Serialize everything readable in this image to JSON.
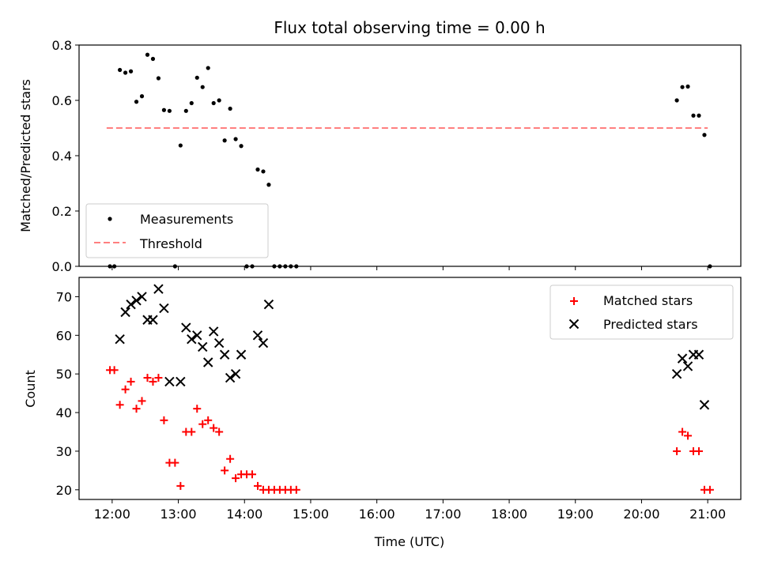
{
  "title": "Flux total observing time = 0.00 h",
  "colors": {
    "measure": "#000000",
    "threshold": "#ff7f7f",
    "matched": "#ff0000",
    "predicted": "#000000"
  },
  "chart_data": [
    {
      "type": "scatter",
      "ylabel": "Matched/Predicted stars",
      "ylim": [
        0,
        0.8
      ],
      "yticks": [
        "0.0",
        "0.2",
        "0.4",
        "0.6",
        "0.8"
      ],
      "legend": {
        "placement": "lower-left",
        "entries": [
          "Measurements",
          "Threshold"
        ]
      },
      "series": [
        {
          "name": "Measurements",
          "marker": "dot",
          "points": [
            [
              "11:58",
              0.0
            ],
            [
              "12:02",
              0.0
            ],
            [
              "12:07",
              0.71
            ],
            [
              "12:12",
              0.7
            ],
            [
              "12:17",
              0.705
            ],
            [
              "12:22",
              0.595
            ],
            [
              "12:27",
              0.615
            ],
            [
              "12:32",
              0.765
            ],
            [
              "12:37",
              0.75
            ],
            [
              "12:42",
              0.68
            ],
            [
              "12:47",
              0.565
            ],
            [
              "12:52",
              0.562
            ],
            [
              "12:57",
              0.0
            ],
            [
              "13:02",
              0.437
            ],
            [
              "13:07",
              0.562
            ],
            [
              "13:12",
              0.59
            ],
            [
              "13:17",
              0.682
            ],
            [
              "13:22",
              0.648
            ],
            [
              "13:27",
              0.717
            ],
            [
              "13:32",
              0.59
            ],
            [
              "13:37",
              0.6
            ],
            [
              "13:42",
              0.455
            ],
            [
              "13:47",
              0.57
            ],
            [
              "13:52",
              0.46
            ],
            [
              "13:57",
              0.435
            ],
            [
              "14:02",
              0.0
            ],
            [
              "14:07",
              0.0
            ],
            [
              "14:12",
              0.35
            ],
            [
              "14:17",
              0.343
            ],
            [
              "14:22",
              0.295
            ],
            [
              "14:27",
              0.0
            ],
            [
              "14:32",
              0.0
            ],
            [
              "14:37",
              0.0
            ],
            [
              "14:42",
              0.0
            ],
            [
              "14:47",
              0.0
            ],
            [
              "20:32",
              0.6
            ],
            [
              "20:37",
              0.648
            ],
            [
              "20:42",
              0.65
            ],
            [
              "20:47",
              0.545
            ],
            [
              "20:52",
              0.545
            ],
            [
              "20:57",
              0.475
            ],
            [
              "21:02",
              0.0
            ]
          ]
        },
        {
          "name": "Threshold",
          "marker": "dashed-line",
          "points": [
            [
              "11:55",
              0.5
            ],
            [
              "21:00",
              0.5
            ]
          ]
        }
      ]
    },
    {
      "type": "scatter",
      "xlabel": "Time (UTC)",
      "ylabel": "Count",
      "ylim": [
        17.5,
        75
      ],
      "yticks": [
        "20",
        "30",
        "40",
        "50",
        "60",
        "70"
      ],
      "xticks": [
        "12:00",
        "13:00",
        "14:00",
        "15:00",
        "16:00",
        "17:00",
        "18:00",
        "19:00",
        "20:00",
        "21:00"
      ],
      "legend": {
        "placement": "upper-right",
        "entries": [
          "Matched stars",
          "Predicted stars"
        ]
      },
      "series": [
        {
          "name": "Matched stars",
          "marker": "plus",
          "points": [
            [
              "11:58",
              51
            ],
            [
              "12:02",
              51
            ],
            [
              "12:07",
              42
            ],
            [
              "12:12",
              46
            ],
            [
              "12:17",
              48
            ],
            [
              "12:22",
              41
            ],
            [
              "12:27",
              43
            ],
            [
              "12:32",
              49
            ],
            [
              "12:37",
              48
            ],
            [
              "12:42",
              49
            ],
            [
              "12:47",
              38
            ],
            [
              "12:52",
              27
            ],
            [
              "12:57",
              27
            ],
            [
              "13:02",
              21
            ],
            [
              "13:07",
              35
            ],
            [
              "13:12",
              35
            ],
            [
              "13:17",
              41
            ],
            [
              "13:22",
              37
            ],
            [
              "13:27",
              38
            ],
            [
              "13:32",
              36
            ],
            [
              "13:37",
              35
            ],
            [
              "13:42",
              25
            ],
            [
              "13:47",
              28
            ],
            [
              "13:52",
              23
            ],
            [
              "13:57",
              24
            ],
            [
              "14:02",
              24
            ],
            [
              "14:07",
              24
            ],
            [
              "14:12",
              21
            ],
            [
              "14:17",
              20
            ],
            [
              "14:22",
              20
            ],
            [
              "14:27",
              20
            ],
            [
              "14:32",
              20
            ],
            [
              "14:37",
              20
            ],
            [
              "14:42",
              20
            ],
            [
              "14:47",
              20
            ],
            [
              "20:32",
              30
            ],
            [
              "20:37",
              35
            ],
            [
              "20:42",
              34
            ],
            [
              "20:47",
              30
            ],
            [
              "20:52",
              30
            ],
            [
              "20:57",
              20
            ],
            [
              "21:02",
              20
            ]
          ]
        },
        {
          "name": "Predicted stars",
          "marker": "x",
          "points": [
            [
              "12:07",
              59
            ],
            [
              "12:12",
              66
            ],
            [
              "12:17",
              68
            ],
            [
              "12:22",
              69
            ],
            [
              "12:27",
              70
            ],
            [
              "12:32",
              64
            ],
            [
              "12:37",
              64
            ],
            [
              "12:42",
              72
            ],
            [
              "12:47",
              67
            ],
            [
              "12:52",
              48
            ],
            [
              "13:02",
              48
            ],
            [
              "13:07",
              62
            ],
            [
              "13:12",
              59
            ],
            [
              "13:17",
              60
            ],
            [
              "13:22",
              57
            ],
            [
              "13:27",
              53
            ],
            [
              "13:32",
              61
            ],
            [
              "13:37",
              58
            ],
            [
              "13:42",
              55
            ],
            [
              "13:47",
              49
            ],
            [
              "13:52",
              50
            ],
            [
              "13:57",
              55
            ],
            [
              "14:12",
              60
            ],
            [
              "14:17",
              58
            ],
            [
              "14:22",
              68
            ],
            [
              "20:32",
              50
            ],
            [
              "20:37",
              54
            ],
            [
              "20:42",
              52
            ],
            [
              "20:47",
              55
            ],
            [
              "20:52",
              55
            ],
            [
              "20:57",
              42
            ]
          ]
        }
      ]
    }
  ]
}
